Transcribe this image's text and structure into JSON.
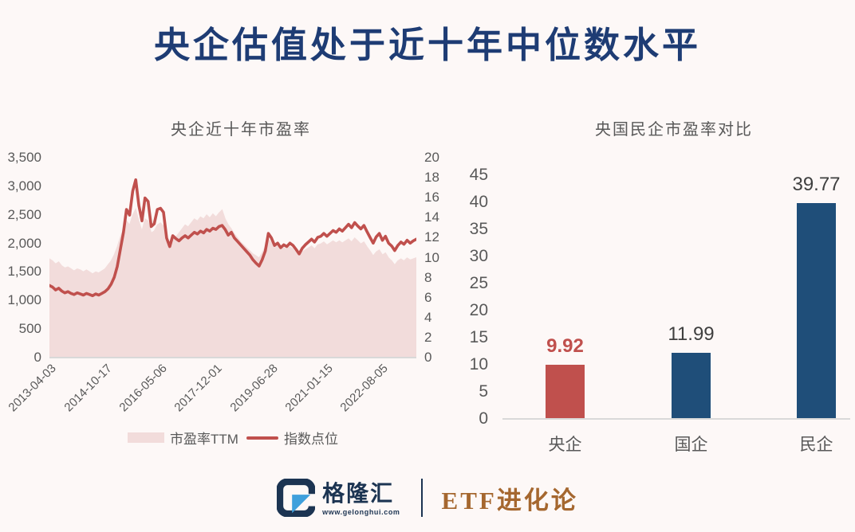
{
  "page": {
    "title": "央企估值处于近十年中位数水平",
    "title_color": "#1e3c74",
    "background": "#fdf8f7"
  },
  "chart_data": [
    {
      "type": "area+line",
      "title": "央企近十年市盈率",
      "x_tick_labels": [
        "2013-04-03",
        "2014-10-17",
        "2016-05-06",
        "2017-12-01",
        "2019-06-28",
        "2021-01-15",
        "2022-08-05"
      ],
      "left_axis": {
        "min": 0,
        "max": 3500,
        "ticks": [
          "3,500",
          "3,000",
          "2,500",
          "2,000",
          "1,500",
          "1,000",
          "500",
          "0"
        ]
      },
      "right_axis": {
        "min": 0,
        "max": 20,
        "ticks": [
          "20",
          "18",
          "16",
          "14",
          "12",
          "10",
          "8",
          "6",
          "4",
          "2",
          "0"
        ]
      },
      "grid": false,
      "legend_position": "bottom",
      "series": [
        {
          "name": "市盈率TTM",
          "type": "area",
          "axis": "right",
          "color": "#f2dcdb",
          "values": [
            9.8,
            9.6,
            9.3,
            9.5,
            9.1,
            8.9,
            9.0,
            8.8,
            8.6,
            8.8,
            8.7,
            8.5,
            8.7,
            8.5,
            8.3,
            8.5,
            8.4,
            8.6,
            8.8,
            9.2,
            9.6,
            10.2,
            11.0,
            12.0,
            12.8,
            13.6,
            13.2,
            14.2,
            14.8,
            13.6,
            12.6,
            13.8,
            13.6,
            12.4,
            12.6,
            13.2,
            13.4,
            13.1,
            11.8,
            11.2,
            12.2,
            12.0,
            12.4,
            12.8,
            13.2,
            13.0,
            13.4,
            13.8,
            13.6,
            14.0,
            13.8,
            14.2,
            13.9,
            14.3,
            14.0,
            14.4,
            14.7,
            13.8,
            13.2,
            12.8,
            12.3,
            11.9,
            11.5,
            11.2,
            10.9,
            10.6,
            10.3,
            10.1,
            9.9,
            10.4,
            11.0,
            11.8,
            11.4,
            10.9,
            11.1,
            10.7,
            10.9,
            10.8,
            11.0,
            10.8,
            10.4,
            10.0,
            10.5,
            10.7,
            10.9,
            11.1,
            10.8,
            11.2,
            11.3,
            11.5,
            11.2,
            11.4,
            11.6,
            11.4,
            11.6,
            11.4,
            11.6,
            11.8,
            11.5,
            11.9,
            11.6,
            11.3,
            11.5,
            11.0,
            10.6,
            10.1,
            10.5,
            10.7,
            10.2,
            10.4,
            9.9,
            9.6,
            9.2,
            9.6,
            9.8,
            9.6,
            9.9,
            9.7,
            9.8,
            9.92
          ]
        },
        {
          "name": "指数点位",
          "type": "line",
          "axis": "left",
          "color": "#c0504d",
          "values": [
            1250,
            1220,
            1170,
            1200,
            1150,
            1120,
            1140,
            1110,
            1090,
            1120,
            1100,
            1080,
            1110,
            1090,
            1070,
            1100,
            1080,
            1110,
            1140,
            1190,
            1270,
            1390,
            1580,
            1880,
            2180,
            2580,
            2480,
            2900,
            3100,
            2650,
            2380,
            2780,
            2720,
            2280,
            2330,
            2580,
            2600,
            2530,
            2080,
            1930,
            2120,
            2070,
            2030,
            2080,
            2120,
            2080,
            2130,
            2180,
            2150,
            2200,
            2170,
            2230,
            2200,
            2250,
            2230,
            2280,
            2300,
            2230,
            2130,
            2180,
            2080,
            2020,
            1960,
            1900,
            1840,
            1780,
            1700,
            1640,
            1590,
            1700,
            1850,
            2160,
            2080,
            1950,
            1990,
            1910,
            1960,
            1930,
            1990,
            1950,
            1880,
            1800,
            1900,
            1960,
            2010,
            2060,
            2010,
            2090,
            2110,
            2160,
            2110,
            2160,
            2210,
            2180,
            2240,
            2200,
            2260,
            2320,
            2260,
            2350,
            2290,
            2240,
            2300,
            2190,
            2090,
            1990,
            2100,
            2160,
            2040,
            2110,
            1990,
            1940,
            1860,
            1950,
            2010,
            1970,
            2040,
            1990,
            2030,
            2060
          ]
        }
      ]
    },
    {
      "type": "bar",
      "title": "央国民企市盈率对比",
      "categories": [
        "央企",
        "国企",
        "民企"
      ],
      "values": [
        9.92,
        11.99,
        39.77
      ],
      "value_labels": [
        "9.92",
        "11.99",
        "39.77"
      ],
      "bar_colors": [
        "#c0504d",
        "#1f4e79",
        "#1f4e79"
      ],
      "value_label_colors": [
        "#c0504d",
        "#3f3f3f",
        "#3f3f3f"
      ],
      "value_label_bold": [
        true,
        false,
        false
      ],
      "y_axis": {
        "min": 0,
        "max": 45,
        "step": 5,
        "ticks": [
          "45",
          "40",
          "35",
          "30",
          "25",
          "20",
          "15",
          "10",
          "5",
          "0"
        ]
      },
      "grid": false
    }
  ],
  "footer": {
    "brand": "格隆汇",
    "brand_url": "www.gelonghui.com",
    "account": "ETF进化论",
    "brand_color": "#1c3452",
    "accent_blue": "#3fa0dc",
    "account_color": "#a5672f"
  }
}
